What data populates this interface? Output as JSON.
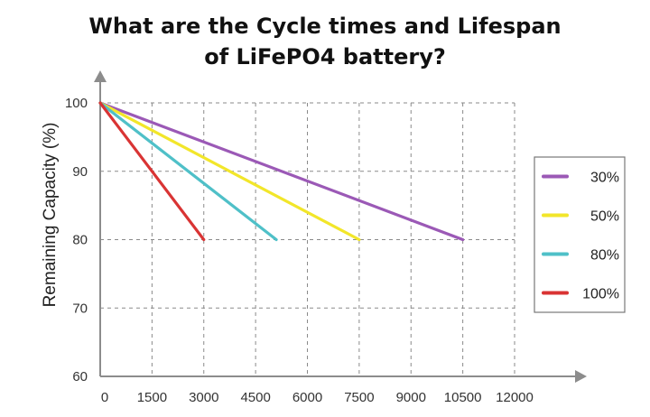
{
  "chart_data": {
    "type": "line",
    "title": "What are the Cycle times and Lifespan\nof LiFePO4 battery?",
    "xlabel": "",
    "ylabel": "Remaining Capacity (%)",
    "xlim": [
      0,
      12000
    ],
    "ylim": [
      60,
      100
    ],
    "x_ticks": [
      0,
      1500,
      3000,
      4500,
      6000,
      7500,
      9000,
      10500,
      12000
    ],
    "y_ticks": [
      60,
      70,
      80,
      90,
      100
    ],
    "grid": true,
    "grid_style": "dashed",
    "legend_position": "right",
    "series": [
      {
        "name": "30%",
        "color": "#9b59b6",
        "points": [
          [
            0,
            100
          ],
          [
            10500,
            80
          ]
        ]
      },
      {
        "name": "50%",
        "color": "#f2e62a",
        "points": [
          [
            0,
            100
          ],
          [
            7500,
            80
          ]
        ]
      },
      {
        "name": "80%",
        "color": "#4fc0c8",
        "points": [
          [
            0,
            100
          ],
          [
            5100,
            80
          ]
        ]
      },
      {
        "name": "100%",
        "color": "#d93434",
        "points": [
          [
            0,
            100
          ],
          [
            3000,
            80
          ]
        ]
      }
    ]
  }
}
